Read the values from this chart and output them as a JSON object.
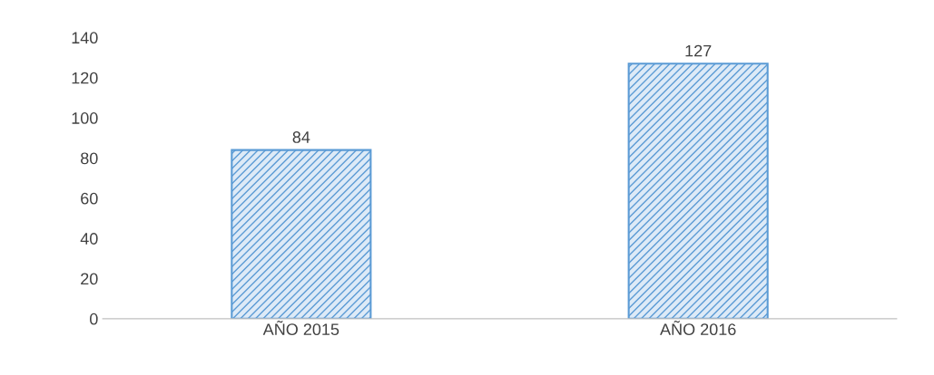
{
  "chart_data": {
    "type": "bar",
    "categories": [
      "AÑO 2015",
      "AÑO 2016"
    ],
    "values": [
      84,
      127
    ],
    "color": "#5b9bd5",
    "ylim": [
      0,
      140
    ],
    "yticks": [
      0,
      20,
      40,
      60,
      80,
      100,
      120,
      140
    ],
    "data_labels": true,
    "grid": false
  }
}
